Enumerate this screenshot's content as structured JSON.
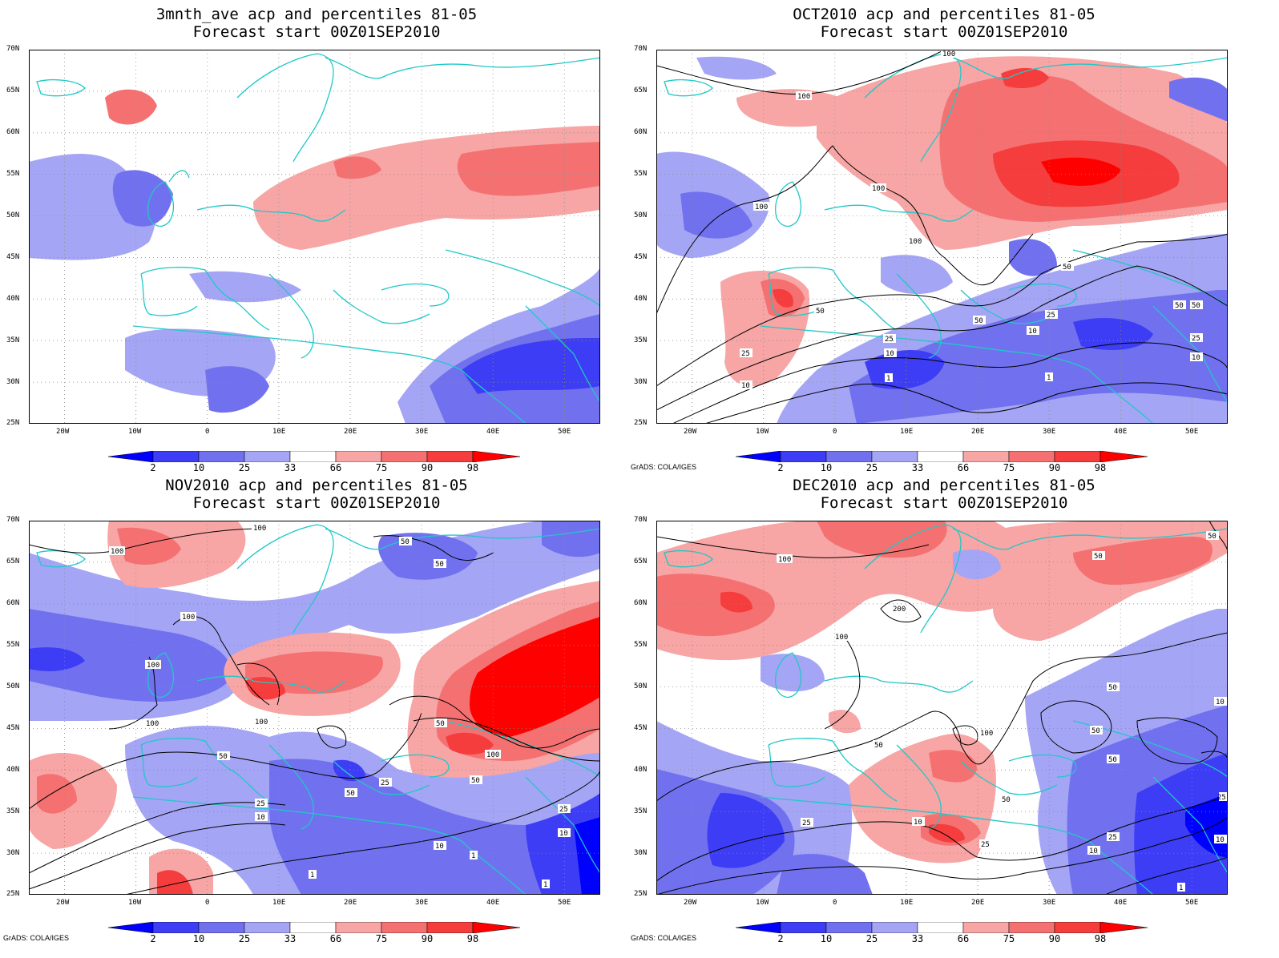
{
  "panels": [
    {
      "title_line1": "3mnth_ave acp and percentiles 81-05",
      "title_line2": "Forecast start 00Z01SEP2010",
      "credit": ""
    },
    {
      "title_line1": "OCT2010 acp and percentiles 81-05",
      "title_line2": "Forecast start 00Z01SEP2010",
      "credit": "GrADS: COLA/IGES"
    },
    {
      "title_line1": "NOV2010 acp and percentiles 81-05",
      "title_line2": "Forecast start 00Z01SEP2010",
      "credit": "GrADS: COLA/IGES"
    },
    {
      "title_line1": "DEC2010 acp and percentiles 81-05",
      "title_line2": "Forecast start 00Z01SEP2010",
      "credit": "GrADS: COLA/IGES"
    }
  ],
  "axes": {
    "lat_labels": [
      "70N",
      "65N",
      "60N",
      "55N",
      "50N",
      "45N",
      "40N",
      "35N",
      "30N",
      "25N"
    ],
    "lon_labels": [
      "20W",
      "10W",
      "0",
      "10E",
      "20E",
      "30E",
      "40E",
      "50E"
    ],
    "lon_range": [
      -25,
      55
    ],
    "lat_range": [
      25,
      70
    ],
    "grid": "dotted"
  },
  "colorbar": {
    "labels": [
      "2",
      "10",
      "25",
      "33",
      "66",
      "75",
      "90",
      "98"
    ],
    "colors": [
      "#0000ff",
      "#3d3df5",
      "#7171ef",
      "#a5a5f5",
      "#ffffff",
      "#f7a5a5",
      "#f57171",
      "#f53d3d",
      "#ff0000"
    ]
  },
  "colors": {
    "coastline": "#1fc8c8",
    "contour": "#000000",
    "frame": "#000000"
  },
  "contour_labels": {
    "oct": [
      "100",
      "100",
      "100",
      "100",
      "100",
      "50",
      "50",
      "50",
      "50",
      "50",
      "25",
      "25",
      "25",
      "25",
      "10",
      "10",
      "10",
      "10",
      "1",
      "1"
    ],
    "nov": [
      "100",
      "100",
      "100",
      "100",
      "100",
      "100",
      "100",
      "50",
      "50",
      "50",
      "50",
      "50",
      "50",
      "25",
      "25",
      "25",
      "10",
      "10",
      "10",
      "1",
      "1",
      "1"
    ],
    "dec": [
      "100",
      "200",
      "100",
      "100",
      "50",
      "50",
      "50",
      "50",
      "50",
      "50",
      "50",
      "25",
      "25",
      "25",
      "25",
      "10",
      "10",
      "10",
      "10",
      "1"
    ]
  }
}
